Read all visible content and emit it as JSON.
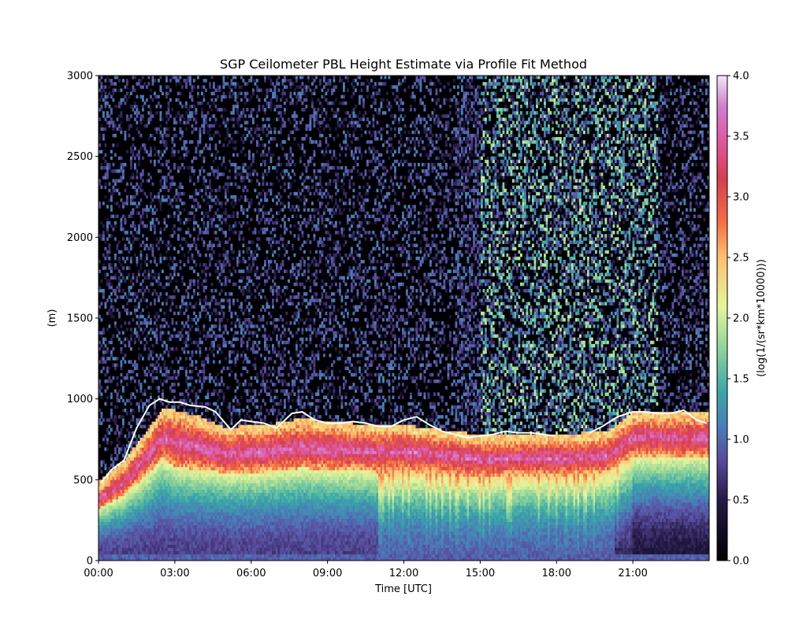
{
  "chart_data": {
    "type": "heatmap",
    "title": "SGP Ceilometer PBL Height Estimate via Profile Fit Method",
    "xlabel": "Time [UTC]",
    "ylabel": "(m)",
    "x_tick_labels": [
      "00:00",
      "03:00",
      "06:00",
      "09:00",
      "12:00",
      "15:00",
      "18:00",
      "21:00"
    ],
    "x_tick_hours": [
      0,
      3,
      6,
      9,
      12,
      15,
      18,
      21
    ],
    "xlim_hours": [
      0,
      24
    ],
    "y_ticks": [
      0,
      500,
      1000,
      1500,
      2000,
      2500,
      3000
    ],
    "ylim": [
      0,
      3000
    ],
    "colorbar": {
      "label": "(log(1/(sr*km*10000)))",
      "ticks": [
        "0.0",
        "0.5",
        "1.0",
        "1.5",
        "2.0",
        "2.5",
        "3.0",
        "3.5",
        "4.0"
      ],
      "range": [
        0,
        4
      ],
      "colormap": "Spectral_r-like",
      "stops": [
        {
          "v": 0.0,
          "color": "#000004"
        },
        {
          "v": 0.5,
          "color": "#251a45"
        },
        {
          "v": 0.85,
          "color": "#5a4da0"
        },
        {
          "v": 1.1,
          "color": "#4a7cb8"
        },
        {
          "v": 1.4,
          "color": "#3aa8a8"
        },
        {
          "v": 1.75,
          "color": "#8fd49a"
        },
        {
          "v": 2.1,
          "color": "#e6f59b"
        },
        {
          "v": 2.5,
          "color": "#fdbf6f"
        },
        {
          "v": 2.8,
          "color": "#f46d43"
        },
        {
          "v": 3.15,
          "color": "#d53e4f"
        },
        {
          "v": 3.45,
          "color": "#e0569e"
        },
        {
          "v": 3.75,
          "color": "#d07fcf"
        },
        {
          "v": 4.0,
          "color": "#f2e6f7"
        }
      ]
    },
    "pbl_line": {
      "color": "#ffffff",
      "time_hours": [
        0.1,
        0.5,
        1.0,
        1.5,
        2.0,
        2.4,
        2.8,
        3.2,
        3.6,
        4.2,
        4.6,
        5.2,
        5.6,
        6.0,
        6.5,
        7.0,
        7.6,
        8.0,
        8.5,
        9.0,
        9.5,
        10.0,
        10.5,
        11.0,
        11.5,
        12.0,
        12.5,
        13.0,
        13.5,
        14.0,
        14.5,
        15.0,
        15.5,
        16.0,
        16.5,
        17.0,
        17.5,
        17.9
      ],
      "height_m": [
        480,
        560,
        620,
        820,
        960,
        1000,
        980,
        980,
        960,
        950,
        920,
        810,
        870,
        860,
        850,
        820,
        910,
        920,
        870,
        850,
        850,
        860,
        850,
        830,
        830,
        870,
        890,
        840,
        800,
        780,
        760,
        770,
        780,
        800,
        790,
        790,
        780,
        770
      ],
      "time_hours_2": [
        19.3,
        19.8,
        20.4,
        21.0,
        21.5,
        22.0,
        22.5,
        23.0,
        23.5,
        23.9
      ],
      "height_m_2": [
        790,
        830,
        890,
        920,
        920,
        910,
        910,
        930,
        870,
        850
      ]
    },
    "aerosol_layer": {
      "time_hours": [
        0,
        1,
        2,
        2.5,
        3,
        4,
        5,
        6,
        7,
        8,
        9,
        10,
        11,
        12,
        13,
        14,
        15,
        16,
        17,
        18,
        19,
        20,
        20.5,
        21,
        22,
        23,
        24
      ],
      "layer_top_m": [
        430,
        560,
        760,
        880,
        870,
        830,
        760,
        780,
        790,
        820,
        800,
        790,
        780,
        780,
        760,
        740,
        720,
        720,
        730,
        720,
        730,
        740,
        800,
        860,
        860,
        860,
        860
      ],
      "layer_bottom_m": [
        330,
        420,
        560,
        650,
        600,
        580,
        560,
        560,
        570,
        590,
        580,
        580,
        560,
        570,
        560,
        550,
        530,
        540,
        540,
        540,
        550,
        560,
        620,
        660,
        660,
        660,
        660
      ]
    }
  }
}
